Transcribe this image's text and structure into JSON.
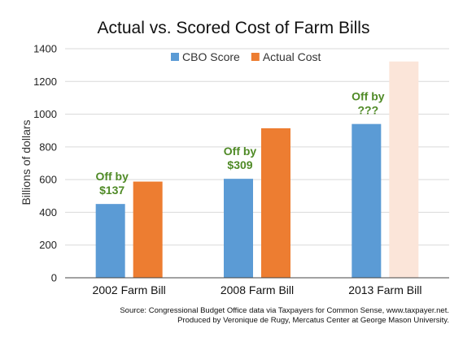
{
  "chart_data": {
    "type": "bar",
    "title": "Actual vs. Scored Cost of Farm Bills",
    "xlabel": "",
    "ylabel": "Billions of dollars",
    "ylim": [
      0,
      1400
    ],
    "yticks": [
      "0",
      "200",
      "400",
      "600",
      "800",
      "1000",
      "1200",
      "1400"
    ],
    "grid": true,
    "legend_placement": "top-center",
    "categories": [
      "2002 Farm Bill",
      "2008 Farm Bill",
      "2013 Farm Bill"
    ],
    "series": [
      {
        "name": "CBO Score",
        "color": "#5b9bd5",
        "values": [
          451,
          605,
          940
        ]
      },
      {
        "name": "Actual Cost",
        "color": "#ed7d31",
        "values": [
          588,
          914,
          1322
        ],
        "faded_last": true,
        "faded_color": "#fbe5d9"
      }
    ],
    "annotations": [
      {
        "category_index": 0,
        "line1": "Off by",
        "line2": "$137",
        "color": "#4f8a26"
      },
      {
        "category_index": 1,
        "line1": "Off by",
        "line2": "$309",
        "color": "#4f8a26"
      },
      {
        "category_index": 2,
        "line1": "Off by",
        "line2": "???",
        "color": "#4f8a26"
      }
    ]
  },
  "source": {
    "line1": "Source: Congressional Budget Office data via Taxpayers for Common Sense, www.taxpayer.net.",
    "line2": "Produced by Veronique de Rugy, Mercatus Center at George Mason University."
  }
}
